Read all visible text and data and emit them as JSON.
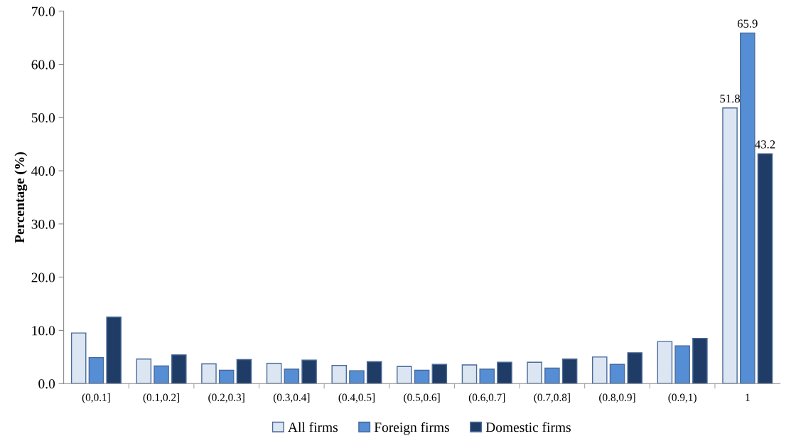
{
  "chart_data": {
    "type": "bar",
    "ylabel": "Percentage (%)",
    "categories": [
      "(0,0.1]",
      "(0.1,0.2]",
      "(0.2,0.3]",
      "(0.3,0.4]",
      "(0.4,0.5]",
      "(0.5,0.6]",
      "(0.6,0.7]",
      "(0.7,0.8]",
      "(0.8,0.9]",
      "(0.9,1)",
      "1"
    ],
    "series": [
      {
        "name": "All firms",
        "color": "#dce6f2",
        "values": [
          9.5,
          4.6,
          3.7,
          3.8,
          3.4,
          3.2,
          3.5,
          4.0,
          5.0,
          7.9,
          51.8
        ],
        "value_labels": [
          null,
          null,
          null,
          null,
          null,
          null,
          null,
          null,
          null,
          null,
          "51.8"
        ]
      },
      {
        "name": "Foreign firms",
        "color": "#558ed5",
        "values": [
          4.9,
          3.3,
          2.5,
          2.7,
          2.4,
          2.5,
          2.7,
          2.9,
          3.6,
          7.1,
          65.9
        ],
        "value_labels": [
          null,
          null,
          null,
          null,
          null,
          null,
          null,
          null,
          null,
          null,
          "65.9"
        ]
      },
      {
        "name": "Domestic firms",
        "color": "#1f3c66",
        "values": [
          12.5,
          5.4,
          4.5,
          4.4,
          4.1,
          3.6,
          4.0,
          4.6,
          5.8,
          8.5,
          43.2
        ],
        "value_labels": [
          null,
          null,
          null,
          null,
          null,
          null,
          null,
          null,
          null,
          null,
          "43.2"
        ]
      }
    ],
    "ylim": [
      0,
      70
    ],
    "yticks": [
      {
        "value": 0,
        "label": "0.0"
      },
      {
        "value": 10,
        "label": "10.0"
      },
      {
        "value": 20,
        "label": "20.0"
      },
      {
        "value": 30,
        "label": "30.0"
      },
      {
        "value": 40,
        "label": "40.0"
      },
      {
        "value": 50,
        "label": "50.0"
      },
      {
        "value": 60,
        "label": "60.0"
      },
      {
        "value": 70,
        "label": "70.0"
      }
    ],
    "grid": false,
    "legend": "bottom"
  }
}
